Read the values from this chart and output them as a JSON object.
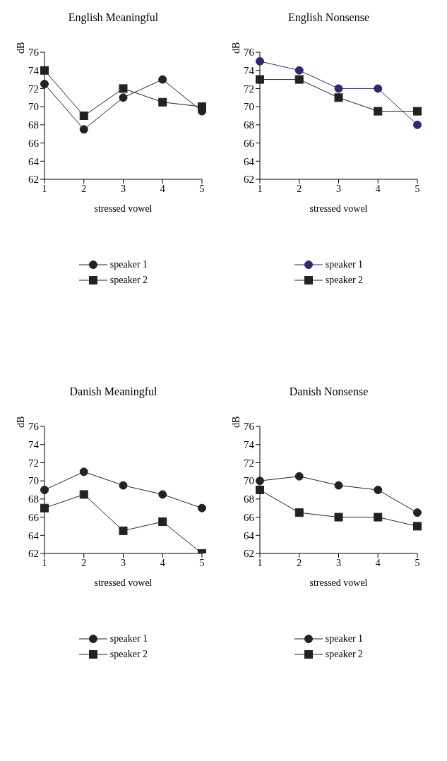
{
  "chart_data": [
    {
      "type": "line",
      "title": "English Meaningful",
      "xlabel": "stressed vowel",
      "ylabel": "dB",
      "categories": [
        "1",
        "2",
        "3",
        "4",
        "5"
      ],
      "ylim": [
        62,
        76
      ],
      "yticks": [
        62,
        64,
        66,
        68,
        70,
        72,
        74,
        76
      ],
      "grid": false,
      "legend": "bottom",
      "series": [
        {
          "name": "speaker 1",
          "color": "#222222",
          "marker": "circle",
          "values": [
            72.5,
            67.5,
            71,
            73,
            69.5
          ]
        },
        {
          "name": "speaker 2",
          "color": "#222222",
          "marker": "square",
          "values": [
            74,
            69,
            72,
            70.5,
            70
          ]
        }
      ]
    },
    {
      "type": "line",
      "title": "English Nonsense",
      "xlabel": "stressed vowel",
      "ylabel": "dB",
      "categories": [
        "1",
        "2",
        "3",
        "4",
        "5"
      ],
      "ylim": [
        62,
        76
      ],
      "yticks": [
        62,
        64,
        66,
        68,
        70,
        72,
        74,
        76
      ],
      "grid": false,
      "legend": "bottom",
      "series": [
        {
          "name": "speaker 1",
          "color": "#2e2a6e",
          "marker": "circle",
          "values": [
            75,
            74,
            72,
            72,
            68
          ]
        },
        {
          "name": "speaker 2",
          "color": "#222222",
          "marker": "square",
          "values": [
            73,
            73,
            71,
            69.5,
            69.5
          ]
        }
      ]
    },
    {
      "type": "line",
      "title": "Danish Meaningful",
      "xlabel": "stressed vowel",
      "ylabel": "dB",
      "categories": [
        "1",
        "2",
        "3",
        "4",
        "5"
      ],
      "ylim": [
        62,
        76
      ],
      "yticks": [
        62,
        64,
        66,
        68,
        70,
        72,
        74,
        76
      ],
      "grid": false,
      "legend": "bottom",
      "series": [
        {
          "name": "speaker 1",
          "color": "#222222",
          "marker": "circle",
          "values": [
            69,
            71,
            69.5,
            68.5,
            67
          ]
        },
        {
          "name": "speaker 2",
          "color": "#222222",
          "marker": "square",
          "values": [
            67,
            68.5,
            64.5,
            65.5,
            62
          ]
        }
      ]
    },
    {
      "type": "line",
      "title": "Danish Nonsense",
      "xlabel": "stressed vowel",
      "ylabel": "dB",
      "categories": [
        "1",
        "2",
        "3",
        "4",
        "5"
      ],
      "ylim": [
        62,
        76
      ],
      "yticks": [
        62,
        64,
        66,
        68,
        70,
        72,
        74,
        76
      ],
      "grid": false,
      "legend": "bottom",
      "series": [
        {
          "name": "speaker 1",
          "color": "#222222",
          "marker": "circle",
          "values": [
            70,
            70.5,
            69.5,
            69,
            66.5
          ]
        },
        {
          "name": "speaker 2",
          "color": "#222222",
          "marker": "square",
          "values": [
            69,
            66.5,
            66,
            66,
            65
          ]
        }
      ]
    }
  ]
}
